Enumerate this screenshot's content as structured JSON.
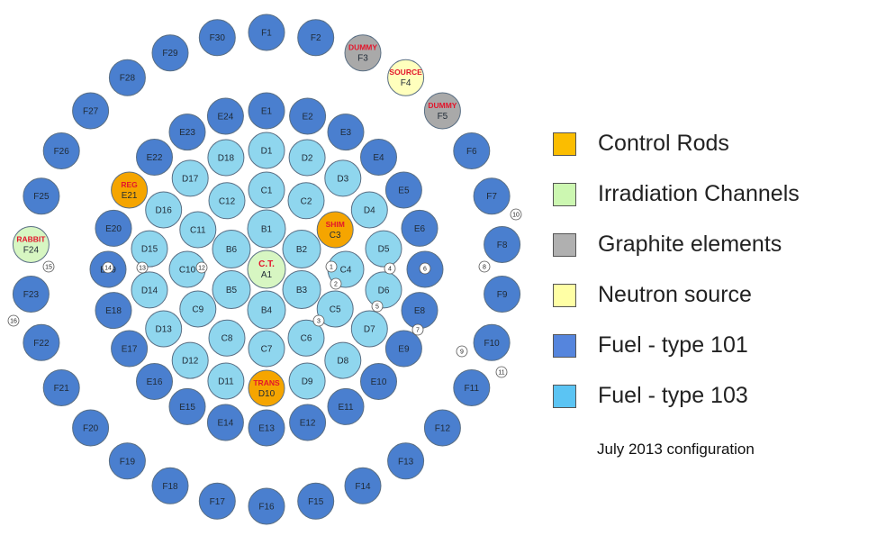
{
  "colors": {
    "fuel_101": "#4a7fcf",
    "fuel_103": "#8fd6ee",
    "control": "#f5a500",
    "irradiation": "#d7f6c2",
    "graphite": "#a9a9a9",
    "source": "#ffffbd"
  },
  "legend": [
    {
      "label": "Control Rods",
      "color": "#fbbd00"
    },
    {
      "label": "Irradiation Channels",
      "color": "#ccf7b1"
    },
    {
      "label": "Graphite elements",
      "color": "#b0b0b0"
    },
    {
      "label": "Neutron source",
      "color": "#ffffa5"
    },
    {
      "label": "Fuel - type 101",
      "color": "#5585dd"
    },
    {
      "label": "Fuel - type 103",
      "color": "#5bc4f3"
    }
  ],
  "note": "July 2013 configuration",
  "rings": {
    "A": [
      {
        "label": "A1",
        "tag": "C.T.",
        "type": "irradiation"
      }
    ],
    "B": [
      "B1",
      "B2",
      "B3",
      "B4",
      "B5",
      "B6"
    ],
    "C": [
      "C1",
      "C2",
      {
        "label": "C3",
        "tag": "SHIM",
        "type": "control"
      },
      "C4",
      "C5",
      "C6",
      "C7",
      "C8",
      "C9",
      "C10",
      "C11",
      "C12"
    ],
    "D": [
      "D1",
      "D2",
      "D3",
      "D4",
      "D5",
      "D6",
      "D7",
      "D8",
      "D9",
      {
        "label": "D10",
        "tag": "TRANS",
        "type": "control"
      },
      "D11",
      "D12",
      "D13",
      "D14",
      "D15",
      "D16",
      "D17",
      "D18"
    ],
    "E": [
      "E1",
      "E2",
      "E3",
      "E4",
      "E5",
      "E6",
      "E7",
      "E8",
      "E9",
      "E10",
      "E11",
      "E12",
      "E13",
      "E14",
      "E15",
      "E16",
      "E17",
      "E18",
      "E19",
      "E20",
      {
        "label": "E21",
        "tag": "REG",
        "type": "control"
      },
      "E22",
      "E23",
      "E24"
    ],
    "F": [
      "F1",
      "F2",
      {
        "label": "F3",
        "tag": "DUMMY",
        "type": "graphite"
      },
      {
        "label": "F4",
        "tag": "SOURCE",
        "type": "source"
      },
      {
        "label": "F5",
        "tag": "DUMMY",
        "type": "graphite"
      },
      "F6",
      "F7",
      "F8",
      "F9",
      "F10",
      "F11",
      "F12",
      "F13",
      "F14",
      "F15",
      "F16",
      "F17",
      "F18",
      "F19",
      "F20",
      "F21",
      "F22",
      "F23",
      {
        "label": "F24",
        "tag": "RABBIT",
        "type": "irradiation"
      },
      "F25",
      "F26",
      "F27",
      "F28",
      "F29",
      "F30"
    ]
  },
  "ports": [
    "1",
    "2",
    "3",
    "4",
    "5",
    "6",
    "7",
    "8",
    "9",
    "10",
    "11",
    "12",
    "13",
    "14",
    "15",
    "16"
  ]
}
